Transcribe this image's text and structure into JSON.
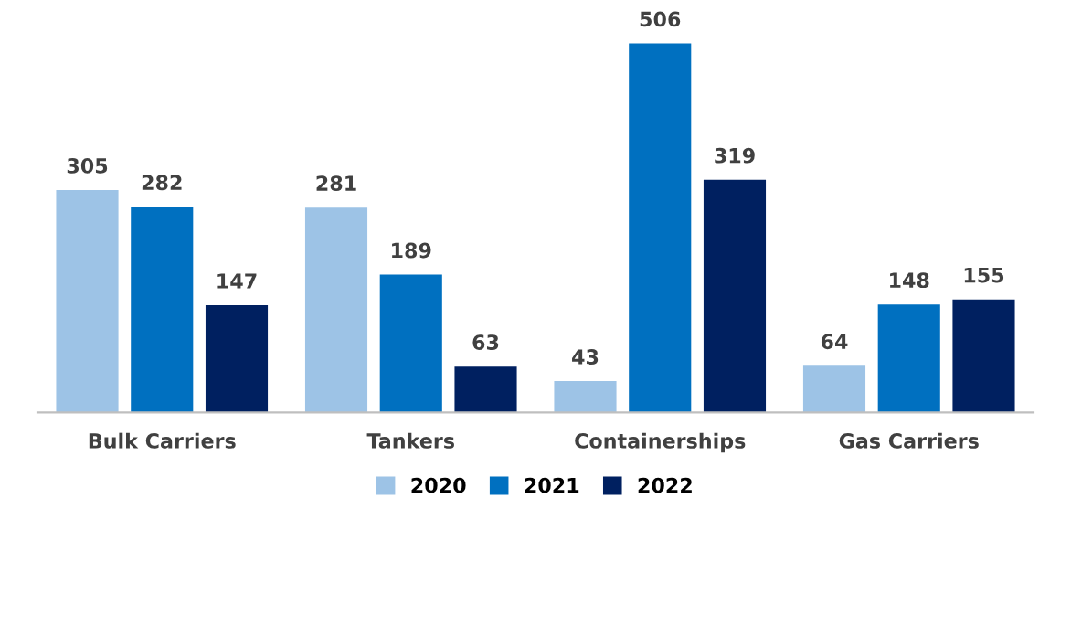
{
  "chart_data": {
    "type": "bar",
    "categories": [
      "Bulk Carriers",
      "Tankers",
      "Containerships",
      "Gas Carriers"
    ],
    "series": [
      {
        "name": "2020",
        "color": "#9dc3e6",
        "values": [
          305,
          281,
          43,
          64
        ]
      },
      {
        "name": "2021",
        "color": "#0070c0",
        "values": [
          282,
          189,
          506,
          148
        ]
      },
      {
        "name": "2022",
        "color": "#002060",
        "values": [
          147,
          63,
          319,
          155
        ]
      }
    ],
    "data_labels": true,
    "legend": "bottom",
    "grid": false
  }
}
